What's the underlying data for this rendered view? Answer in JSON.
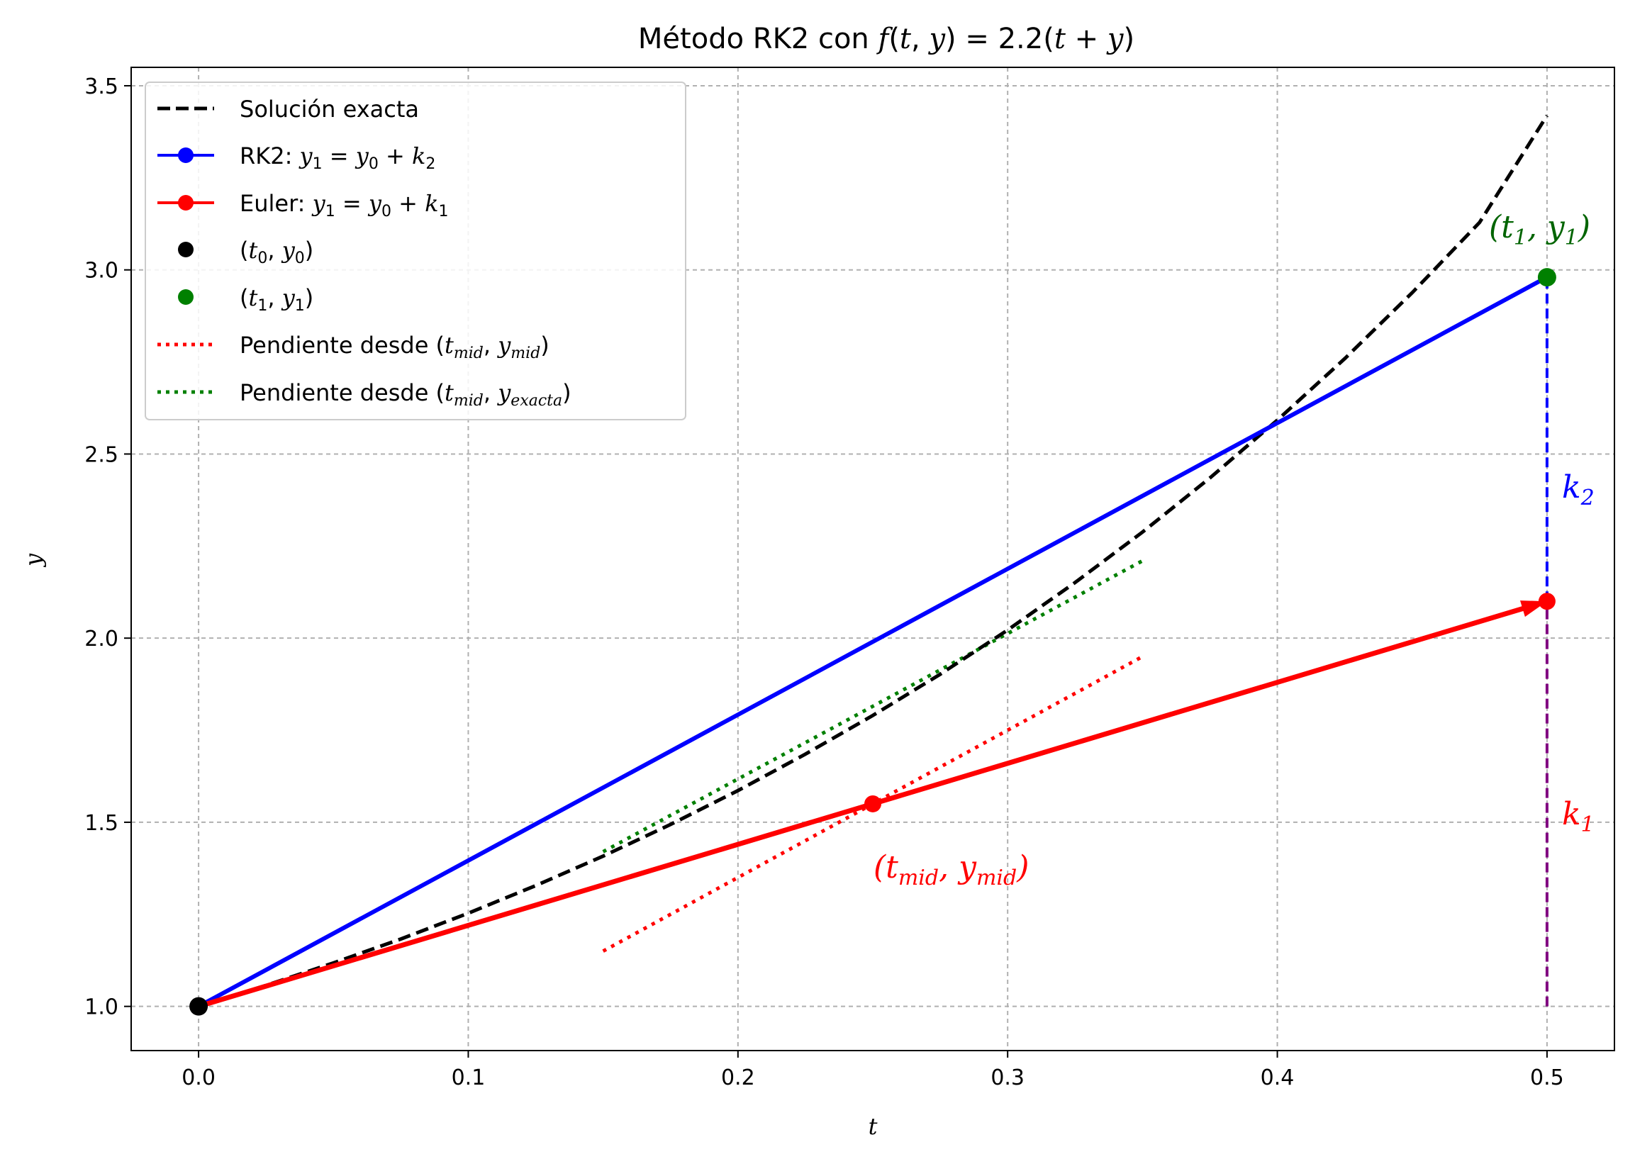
{
  "chart_data": {
    "type": "line",
    "title": "Método RK2 con f(t, y) = 2.2(t + y)",
    "xlabel": "t",
    "ylabel": "y",
    "xlim": [
      -0.025,
      0.525
    ],
    "ylim": [
      0.88,
      3.55
    ],
    "xticks": [
      0.0,
      0.1,
      0.2,
      0.3,
      0.4,
      0.5
    ],
    "xtick_labels": [
      "0.0",
      "0.1",
      "0.2",
      "0.3",
      "0.4",
      "0.5"
    ],
    "yticks": [
      1.0,
      1.5,
      2.0,
      2.5,
      3.0,
      3.5
    ],
    "ytick_labels": [
      "1.0",
      "1.5",
      "2.0",
      "2.5",
      "3.0",
      "3.5"
    ],
    "grid": true,
    "legend_position": "upper-left",
    "colors": {
      "exact": "#000000",
      "rk2": "#0000ff",
      "euler": "#ff0000",
      "mid_slope": "#ff0000",
      "exact_slope": "#008000",
      "green_point": "#008000",
      "purple": "#800080"
    },
    "series": [
      {
        "name": "Solución exacta",
        "style": "dashed",
        "color": "#000000",
        "x": [
          0.0,
          0.025,
          0.05,
          0.075,
          0.1,
          0.125,
          0.15,
          0.175,
          0.2,
          0.225,
          0.25,
          0.275,
          0.3,
          0.325,
          0.35,
          0.375,
          0.4,
          0.425,
          0.45,
          0.475,
          0.5
        ],
        "y": [
          1.0,
          1.057,
          1.118,
          1.183,
          1.253,
          1.328,
          1.408,
          1.494,
          1.586,
          1.685,
          1.79,
          1.902,
          2.022,
          2.151,
          2.288,
          2.435,
          2.592,
          2.759,
          2.938,
          3.129,
          3.419
        ]
      },
      {
        "name": "RK2: y1 = y0 + k2",
        "color": "#0000ff",
        "x": [
          0.0,
          0.5
        ],
        "y": [
          1.0,
          2.98
        ]
      },
      {
        "name": "Euler: y1 = y0 + k1",
        "color": "#ff0000",
        "x": [
          0.0,
          0.25,
          0.5
        ],
        "y": [
          1.0,
          1.55,
          2.1
        ]
      },
      {
        "name": "(t0, y0)",
        "marker": "point",
        "color": "#000000",
        "x": [
          0.0
        ],
        "y": [
          1.0
        ]
      },
      {
        "name": "(t1, y1)",
        "marker": "point",
        "color": "#008000",
        "x": [
          0.5
        ],
        "y": [
          2.98
        ]
      },
      {
        "name": "Pendiente desde (tmid, ymid)",
        "style": "dotted",
        "color": "#ff0000",
        "x": [
          0.15,
          0.35
        ],
        "y": [
          1.15,
          1.95
        ]
      },
      {
        "name": "Pendiente desde (tmid, yexacta)",
        "style": "dotted",
        "color": "#008000",
        "x": [
          0.15,
          0.35
        ],
        "y": [
          1.42,
          2.21
        ]
      }
    ],
    "vertical_segments": [
      {
        "label": "k2",
        "color": "#0000ff",
        "style": "dashed",
        "x": 0.5,
        "y": [
          2.1,
          2.98
        ]
      },
      {
        "label": "k1",
        "color": "#800080",
        "style": "dashed",
        "x": 0.5,
        "y": [
          1.0,
          2.1
        ]
      }
    ],
    "annotations": [
      {
        "text": "(t1, y1)",
        "color": "#006400"
      },
      {
        "text": "k2",
        "color": "#0000ff"
      },
      {
        "text": "k1",
        "color": "#ff0000"
      },
      {
        "text": "(tmid, ymid)",
        "color": "#ff0000"
      }
    ]
  }
}
